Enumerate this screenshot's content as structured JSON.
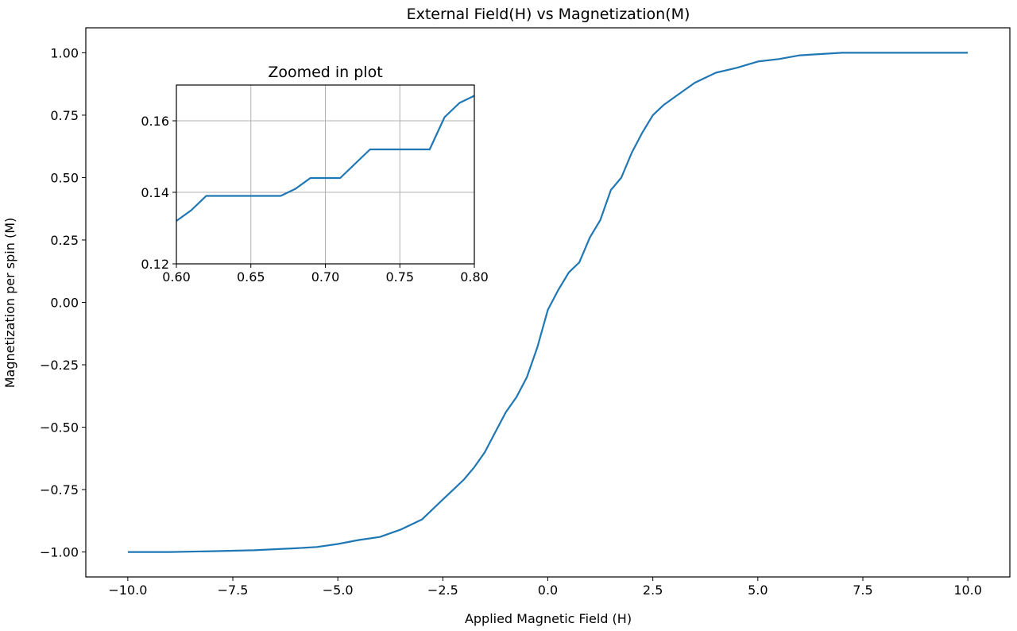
{
  "chart_data": [
    {
      "type": "line",
      "title": "External Field(H) vs Magnetization(M)",
      "xlabel": "Applied Magnetic Field (H)",
      "ylabel": "Magnetization per spin (M)",
      "xlim": [
        -11,
        11.0
      ],
      "ylim": [
        -1.1,
        1.1
      ],
      "xticks": [
        -10,
        -7.5,
        -5,
        -2.5,
        0,
        2.5,
        5,
        7.5,
        10
      ],
      "xtick_labels": [
        "−10.0",
        "−7.5",
        "−5.0",
        "−2.5",
        "0.0",
        "2.5",
        "5.0",
        "7.5",
        "10.0"
      ],
      "yticks": [
        -1,
        -0.75,
        -0.5,
        -0.25,
        0,
        0.25,
        0.5,
        0.75,
        1
      ],
      "ytick_labels": [
        "−1.00",
        "−0.75",
        "−0.50",
        "−0.25",
        "0.00",
        "0.25",
        "0.50",
        "0.75",
        "1.00"
      ],
      "grid": false,
      "color": "#1f77b4",
      "x": [
        -10,
        -9,
        -8,
        -7,
        -6,
        -5.5,
        -5,
        -4.5,
        -4,
        -3.5,
        -3,
        -2.75,
        -2.5,
        -2.25,
        -2,
        -1.75,
        -1.5,
        -1.25,
        -1,
        -0.75,
        -0.5,
        -0.25,
        0,
        0.25,
        0.5,
        0.75,
        1,
        1.25,
        1.5,
        1.75,
        2,
        2.25,
        2.5,
        2.75,
        3,
        3.5,
        4,
        4.5,
        5,
        5.5,
        6,
        6.5,
        7,
        8,
        10
      ],
      "y": [
        -1.0,
        -1.0,
        -0.997,
        -0.993,
        -0.985,
        -0.98,
        -0.968,
        -0.952,
        -0.94,
        -0.91,
        -0.87,
        -0.83,
        -0.79,
        -0.75,
        -0.71,
        -0.66,
        -0.6,
        -0.52,
        -0.44,
        -0.38,
        -0.3,
        -0.18,
        -0.03,
        0.05,
        0.12,
        0.16,
        0.26,
        0.33,
        0.45,
        0.5,
        0.6,
        0.68,
        0.75,
        0.79,
        0.82,
        0.88,
        0.92,
        0.94,
        0.965,
        0.975,
        0.99,
        0.995,
        1.0,
        1.0,
        1.0
      ]
    },
    {
      "type": "line",
      "title": "Zoomed in plot",
      "xlim": [
        0.6,
        0.8
      ],
      "ylim": [
        0.12,
        0.17
      ],
      "xticks": [
        0.6,
        0.65,
        0.7,
        0.75,
        0.8
      ],
      "xtick_labels": [
        "0.60",
        "0.65",
        "0.70",
        "0.75",
        "0.80"
      ],
      "yticks": [
        0.12,
        0.14,
        0.16
      ],
      "ytick_labels": [
        "0.12",
        "0.14",
        "0.16"
      ],
      "grid": true,
      "color": "#1f77b4",
      "x": [
        0.6,
        0.61,
        0.62,
        0.67,
        0.68,
        0.69,
        0.71,
        0.73,
        0.77,
        0.78,
        0.79,
        0.8
      ],
      "y": [
        0.132,
        0.135,
        0.139,
        0.139,
        0.141,
        0.144,
        0.144,
        0.152,
        0.152,
        0.161,
        0.165,
        0.167
      ]
    }
  ]
}
